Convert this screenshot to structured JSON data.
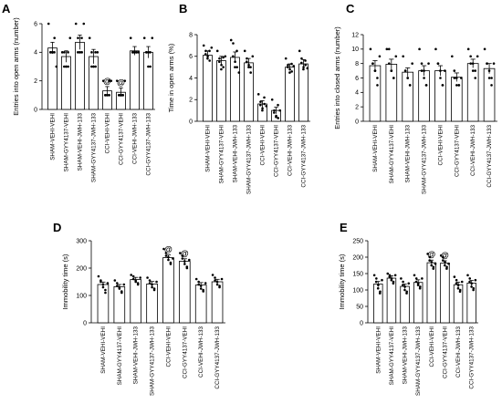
{
  "chart_data": [
    {
      "panel_label": "A",
      "type": "bar",
      "ylabel": "Entries into open arms (number)",
      "ylim": [
        0,
        6
      ],
      "yticks": [
        0,
        2,
        4,
        6
      ],
      "categories": [
        "SHAM-VEHI-VEHI",
        "SHAM-GYY4137-VEHI",
        "SHAM-VEHI-JWH-133",
        "SHAM-GYY4137-JWH-133",
        "CCI-VEHI-VEHI",
        "CCI-GYY4137-VEHI",
        "CCI-VEHI-JWH-133",
        "CCI-GYY4137-JWH-133"
      ],
      "values": [
        4.3,
        3.7,
        4.7,
        3.7,
        1.3,
        1.2,
        4.1,
        4.0
      ],
      "errors": [
        0.4,
        0.4,
        0.5,
        0.5,
        0.3,
        0.3,
        0.3,
        0.4
      ],
      "points": [
        [
          6,
          4,
          4,
          4,
          4,
          5,
          4,
          3
        ],
        [
          4,
          4,
          3,
          3,
          3,
          3,
          4,
          5
        ],
        [
          6,
          5,
          4,
          4,
          4,
          4,
          5,
          6
        ],
        [
          5,
          4,
          3,
          3,
          3,
          3,
          4,
          4
        ],
        [
          2,
          1,
          1,
          1,
          1,
          1,
          2,
          2
        ],
        [
          2,
          1,
          1,
          1,
          1,
          1,
          1,
          2
        ],
        [
          5,
          4,
          4,
          4,
          4,
          4,
          4,
          4
        ],
        [
          5,
          4,
          4,
          4,
          3,
          3,
          4,
          5
        ]
      ],
      "markers": [
        "",
        "",
        "",
        "",
        "@",
        "@",
        "",
        ""
      ],
      "grid": false
    },
    {
      "panel_label": "B",
      "type": "bar",
      "ylabel": "Time in open arms (%)",
      "ylim": [
        0,
        8
      ],
      "yticks": [
        0,
        2,
        4,
        6,
        8
      ],
      "categories": [
        "SHAM-VEHI-VEHI",
        "SHAM-GYY4137-VEHI",
        "SHAM-VEHI-JWH-133",
        "SHAM-GYY4137-JWH-133",
        "CCI-VEHI-VEHI",
        "CCI-GYY4137-VEHI",
        "CCI-VEHI-JWH-133",
        "CCI-GYY4137-JWH-133"
      ],
      "values": [
        6.1,
        5.6,
        5.9,
        5.4,
        1.6,
        1.0,
        5.0,
        5.3
      ],
      "errors": [
        0.4,
        0.4,
        0.5,
        0.4,
        0.3,
        0.3,
        0.3,
        0.4
      ],
      "points": [
        [
          7.0,
          6.5,
          6.2,
          6.0,
          5.8,
          5.6,
          6.5,
          6.8
        ],
        [
          6.5,
          5.8,
          5.5,
          5.2,
          4.8,
          5.0,
          5.9,
          6.0
        ],
        [
          7.5,
          7.2,
          6.0,
          5.5,
          5.0,
          5.0,
          6.5,
          4.5
        ],
        [
          6.5,
          5.8,
          5.5,
          5.2,
          5.0,
          4.5,
          5.0,
          6.0
        ],
        [
          2.5,
          1.8,
          1.5,
          1.2,
          1.0,
          1.6,
          2.2,
          1.4
        ],
        [
          2.0,
          1.0,
          0.8,
          0.5,
          0.4,
          0.3,
          1.5,
          1.0
        ],
        [
          5.8,
          5.2,
          5.0,
          4.8,
          4.5,
          4.6,
          5.3,
          5.1
        ],
        [
          6.5,
          5.8,
          5.4,
          5.0,
          4.8,
          5.2,
          5.6,
          4.9
        ]
      ],
      "markers": [
        "",
        "",
        "",
        "",
        "",
        "",
        "",
        ""
      ],
      "grid": false
    },
    {
      "panel_label": "C",
      "type": "bar",
      "ylabel": "Entries into closed arms (number)",
      "ylim": [
        0,
        12
      ],
      "yticks": [
        0,
        2,
        4,
        6,
        8,
        10,
        12
      ],
      "categories": [
        "SHAM-VEHI-VEHI",
        "SHAM-GYY4137-VEHI",
        "SHAM-VEHI-JWH-133",
        "SHAM-GYY4137-JWH-133",
        "CCI-VEHI-VEHI",
        "CCI-GYY4137-VEHI",
        "CCI-VEHI-JWH-133",
        "CCI-GYY4137-JWH-133"
      ],
      "values": [
        7.7,
        7.9,
        6.8,
        7.0,
        7.0,
        6.1,
        8.0,
        7.3
      ],
      "errors": [
        0.7,
        0.7,
        0.6,
        0.7,
        0.7,
        0.6,
        0.6,
        0.7
      ],
      "points": [
        [
          10,
          8,
          8,
          7,
          7,
          6,
          5,
          9
        ],
        [
          10,
          10,
          8,
          7,
          7,
          6,
          6,
          9
        ],
        [
          9,
          7,
          7,
          6,
          6,
          5,
          5,
          8
        ],
        [
          10,
          8,
          7,
          7,
          6,
          5,
          5,
          8
        ],
        [
          10,
          8,
          8,
          7,
          6,
          5,
          5,
          7
        ],
        [
          9,
          7,
          6,
          6,
          5,
          5,
          5,
          6
        ],
        [
          10,
          9,
          8,
          8,
          7,
          7,
          6,
          9
        ],
        [
          10,
          8,
          8,
          7,
          6,
          5,
          6,
          8
        ]
      ],
      "markers": [
        "",
        "",
        "",
        "",
        "",
        "",
        "",
        ""
      ],
      "grid": false
    },
    {
      "panel_label": "D",
      "type": "bar",
      "ylabel": "Immobility time (s)",
      "ylim": [
        0,
        300
      ],
      "yticks": [
        0,
        100,
        200,
        300
      ],
      "categories": [
        "SHAM-VEHI-VEHI",
        "SHAM-GYY4137-VEHI",
        "SHAM-VEHI-JWH-133",
        "SHAM-GYY4137-JWH-133",
        "CCI-VEHI-VEHI",
        "CCI-GYY4137-VEHI",
        "CCI-VEHI-JWH-133",
        "CCI-GYY4137-JWH-133"
      ],
      "values": [
        140,
        132,
        158,
        142,
        238,
        225,
        138,
        150
      ],
      "errors": [
        9,
        8,
        8,
        9,
        10,
        9,
        9,
        9
      ],
      "points": [
        [
          170,
          155,
          150,
          140,
          130,
          120,
          110,
          145
        ],
        [
          155,
          145,
          135,
          130,
          125,
          115,
          110,
          140
        ],
        [
          175,
          170,
          160,
          155,
          150,
          145,
          140,
          165
        ],
        [
          165,
          155,
          145,
          140,
          130,
          120,
          125,
          150
        ],
        [
          270,
          255,
          245,
          240,
          230,
          220,
          215,
          235
        ],
        [
          255,
          245,
          235,
          225,
          215,
          205,
          200,
          230
        ],
        [
          160,
          150,
          140,
          135,
          125,
          120,
          115,
          145
        ],
        [
          175,
          165,
          155,
          150,
          140,
          130,
          135,
          160
        ]
      ],
      "markers": [
        "",
        "",
        "",
        "",
        "@",
        "@",
        "",
        ""
      ],
      "grid": false
    },
    {
      "panel_label": "E",
      "type": "bar",
      "ylabel": "Immobility time (s)",
      "ylim": [
        0,
        250
      ],
      "yticks": [
        0,
        50,
        100,
        150,
        200,
        250
      ],
      "categories": [
        "SHAM-VEHI-VEHI",
        "SHAM-GYY4137-VEHI",
        "SHAM-VEHI-JWH-133",
        "SHAM-GYY4137-JWH-133",
        "CCI-VEHI-VEHI",
        "CCI-GYY4137-VEHI",
        "CCI-VEHI-JWH-133",
        "CCI-GYY4137-JWH-133"
      ],
      "values": [
        118,
        136,
        111,
        123,
        183,
        182,
        116,
        121
      ],
      "errors": [
        8,
        7,
        7,
        8,
        8,
        7,
        8,
        8
      ],
      "points": [
        [
          145,
          135,
          125,
          115,
          105,
          95,
          90,
          130
        ],
        [
          150,
          145,
          140,
          135,
          130,
          125,
          120,
          145
        ],
        [
          135,
          125,
          115,
          110,
          100,
          95,
          90,
          120
        ],
        [
          145,
          135,
          125,
          120,
          115,
          110,
          105,
          135
        ],
        [
          210,
          200,
          190,
          185,
          175,
          170,
          165,
          180
        ],
        [
          205,
          200,
          190,
          185,
          175,
          170,
          165,
          180
        ],
        [
          140,
          130,
          120,
          115,
          105,
          100,
          95,
          125
        ],
        [
          145,
          135,
          125,
          120,
          110,
          105,
          100,
          130
        ]
      ],
      "markers": [
        "",
        "",
        "",
        "",
        "@",
        "@",
        "",
        ""
      ],
      "grid": false
    }
  ]
}
